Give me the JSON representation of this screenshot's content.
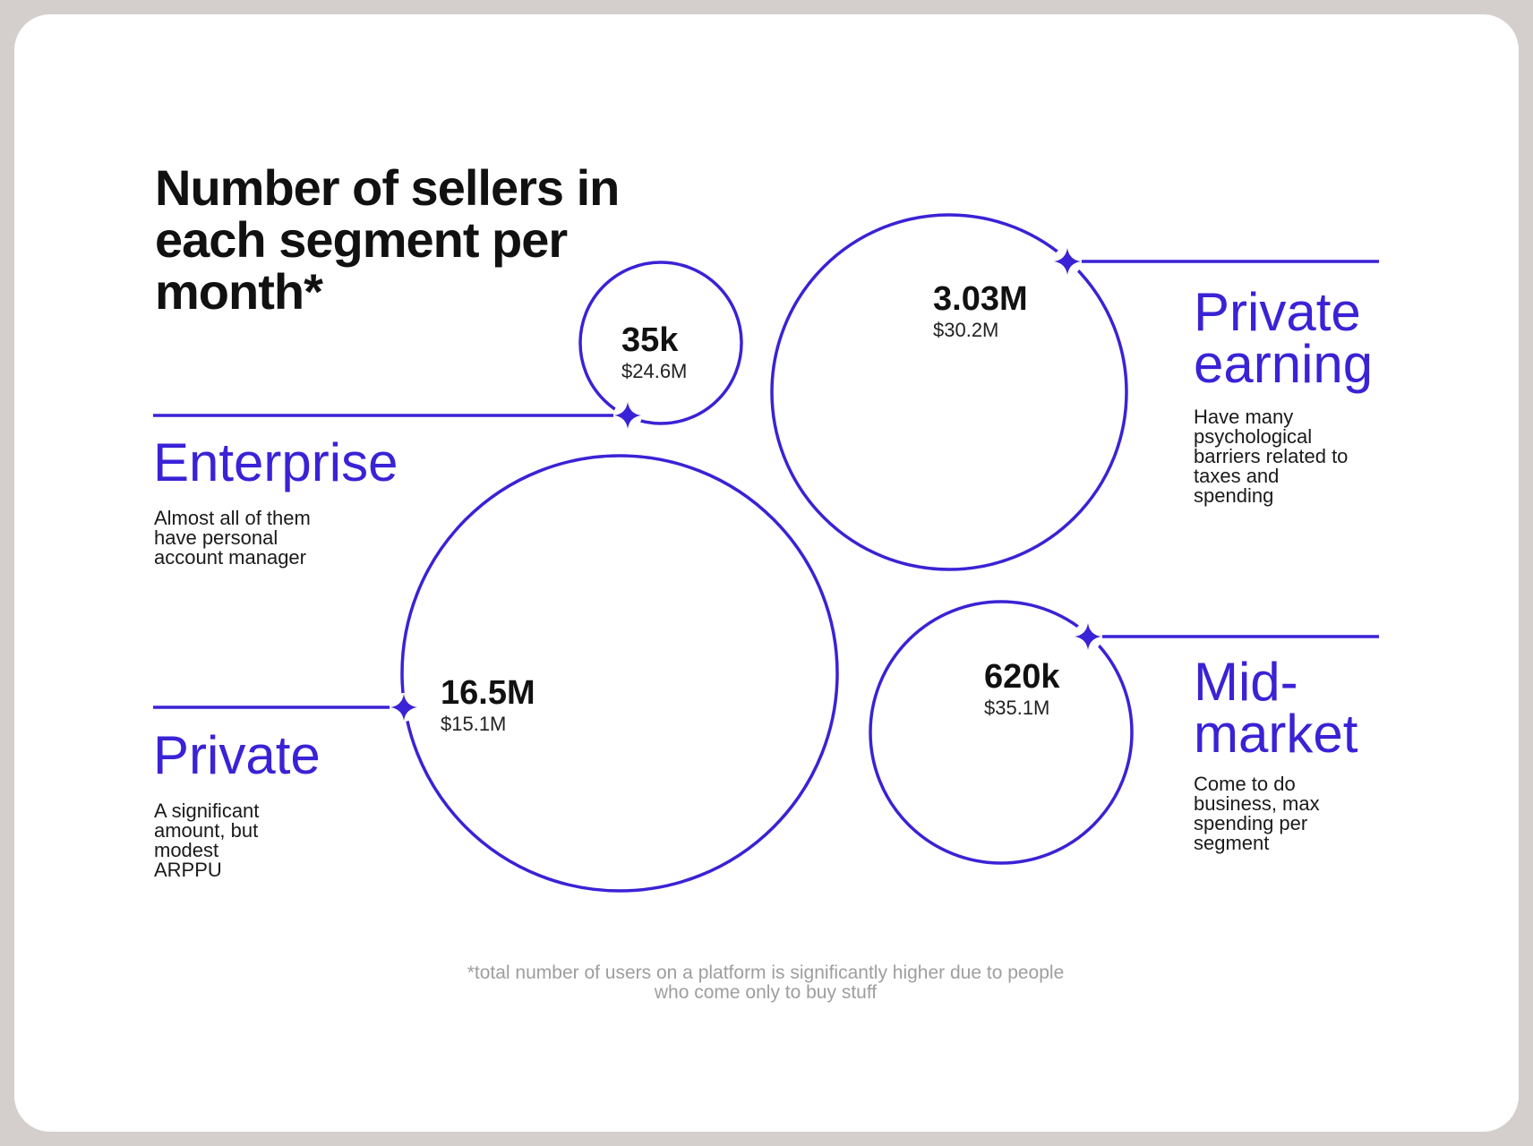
{
  "title": "Number of sellers in each segment per month*",
  "accent_color": "#3a22d6",
  "segments": {
    "enterprise": {
      "name": "Enterprise",
      "description": "Almost all of them have personal account manager",
      "count": "35k",
      "revenue": "$24.6M"
    },
    "private": {
      "name": "Private",
      "description": "A significant amount, but modest ARPPU",
      "count": "16.5M",
      "revenue": "$15.1M"
    },
    "private_earning": {
      "name": "Private earning",
      "description": "Have many psychological barriers related to taxes and spending",
      "count": "3.03M",
      "revenue": "$30.2M"
    },
    "mid_market": {
      "name": "Mid-market",
      "description": "Come to do business, max spending per segment",
      "count": "620k",
      "revenue": "$35.1M"
    }
  },
  "footnote": "*total number of users on a platform is significantly higher due to people who come only to buy stuff"
}
